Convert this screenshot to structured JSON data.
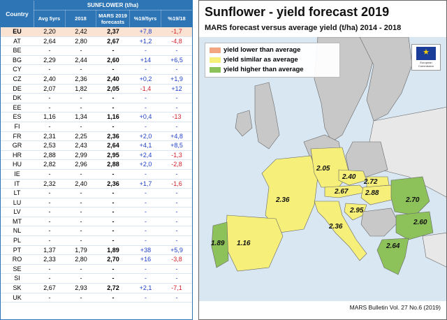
{
  "table": {
    "group_header": "SUNFLOWER (t/ha)",
    "country_header": "Country",
    "columns": [
      "Avg 5yrs",
      "2018",
      "MARS 2019 forecasts",
      "%19/5yrs",
      "%19/18"
    ],
    "rows": [
      {
        "c": "EU",
        "a": "2,20",
        "b": "2,42",
        "f": "2,37",
        "p1": "+7,8",
        "p2": "-1,7"
      },
      {
        "c": "AT",
        "a": "2,64",
        "b": "2,80",
        "f": "2,67",
        "p1": "+1,2",
        "p2": "-4,8"
      },
      {
        "c": "BE",
        "a": "-",
        "b": "-",
        "f": "-",
        "p1": "-",
        "p2": "-"
      },
      {
        "c": "BG",
        "a": "2,29",
        "b": "2,44",
        "f": "2,60",
        "p1": "+14",
        "p2": "+6,5"
      },
      {
        "c": "CY",
        "a": "-",
        "b": "-",
        "f": "-",
        "p1": "-",
        "p2": "-"
      },
      {
        "c": "CZ",
        "a": "2,40",
        "b": "2,36",
        "f": "2,40",
        "p1": "+0,2",
        "p2": "+1,9"
      },
      {
        "c": "DE",
        "a": "2,07",
        "b": "1,82",
        "f": "2,05",
        "p1": "-1,4",
        "p2": "+12"
      },
      {
        "c": "DK",
        "a": "-",
        "b": "-",
        "f": "-",
        "p1": "-",
        "p2": "-"
      },
      {
        "c": "EE",
        "a": "-",
        "b": "-",
        "f": "-",
        "p1": "-",
        "p2": "-"
      },
      {
        "c": "ES",
        "a": "1,16",
        "b": "1,34",
        "f": "1,16",
        "p1": "+0,4",
        "p2": "-13"
      },
      {
        "c": "FI",
        "a": "-",
        "b": "-",
        "f": "-",
        "p1": "-",
        "p2": "-"
      },
      {
        "c": "FR",
        "a": "2,31",
        "b": "2,25",
        "f": "2,36",
        "p1": "+2,0",
        "p2": "+4,8"
      },
      {
        "c": "GR",
        "a": "2,53",
        "b": "2,43",
        "f": "2,64",
        "p1": "+4,1",
        "p2": "+8,5"
      },
      {
        "c": "HR",
        "a": "2,88",
        "b": "2,99",
        "f": "2,95",
        "p1": "+2,4",
        "p2": "-1,3"
      },
      {
        "c": "HU",
        "a": "2,82",
        "b": "2,96",
        "f": "2,88",
        "p1": "+2,0",
        "p2": "-2,8"
      },
      {
        "c": "IE",
        "a": "-",
        "b": "-",
        "f": "-",
        "p1": "-",
        "p2": "-"
      },
      {
        "c": "IT",
        "a": "2,32",
        "b": "2,40",
        "f": "2,36",
        "p1": "+1,7",
        "p2": "-1,6"
      },
      {
        "c": "LT",
        "a": "-",
        "b": "-",
        "f": "-",
        "p1": "-",
        "p2": "-"
      },
      {
        "c": "LU",
        "a": "-",
        "b": "-",
        "f": "-",
        "p1": "-",
        "p2": "-"
      },
      {
        "c": "LV",
        "a": "-",
        "b": "-",
        "f": "-",
        "p1": "-",
        "p2": "-"
      },
      {
        "c": "MT",
        "a": "-",
        "b": "-",
        "f": "-",
        "p1": "-",
        "p2": "-"
      },
      {
        "c": "NL",
        "a": "-",
        "b": "-",
        "f": "-",
        "p1": "-",
        "p2": "-"
      },
      {
        "c": "PL",
        "a": "-",
        "b": "-",
        "f": "-",
        "p1": "-",
        "p2": "-"
      },
      {
        "c": "PT",
        "a": "1,37",
        "b": "1,79",
        "f": "1,89",
        "p1": "+38",
        "p2": "+5,9"
      },
      {
        "c": "RO",
        "a": "2,33",
        "b": "2,80",
        "f": "2,70",
        "p1": "+16",
        "p2": "-3,8"
      },
      {
        "c": "SE",
        "a": "-",
        "b": "-",
        "f": "-",
        "p1": "-",
        "p2": "-"
      },
      {
        "c": "SI",
        "a": "-",
        "b": "-",
        "f": "-",
        "p1": "-",
        "p2": "-"
      },
      {
        "c": "SK",
        "a": "2,67",
        "b": "2,93",
        "f": "2,72",
        "p1": "+2,1",
        "p2": "-7,1"
      },
      {
        "c": "UK",
        "a": "-",
        "b": "-",
        "f": "-",
        "p1": "-",
        "p2": "-"
      }
    ]
  },
  "map": {
    "title": "Sunflower - yield forecast 2019",
    "subtitle": "MARS forecast versus average yield (t/ha) 2014 - 2018",
    "legend": [
      {
        "label": "yield lower than average",
        "color": "#f4a582"
      },
      {
        "label": "yield similar as average",
        "color": "#f6f07a"
      },
      {
        "label": "yield higher than average",
        "color": "#8dc15a"
      }
    ],
    "eu_logo_text": "European Commission",
    "footer": "MARS Bulletin Vol. 27 No.6 (2019)",
    "labels": {
      "de": "2.05",
      "cz": "2.40",
      "sk": "2.72",
      "fr": "2.36",
      "at": "2.67",
      "hu": "2.88",
      "ro": "2.70",
      "hr": "2.95",
      "it": "2.36",
      "bg": "2.60",
      "pt": "1.89",
      "es": "1.16",
      "gr": "2.64"
    },
    "colors": {
      "sea": "#d9e7f2",
      "land_other": "#c8c8c8",
      "similar": "#f6f07a",
      "higher": "#8dc15a"
    }
  }
}
